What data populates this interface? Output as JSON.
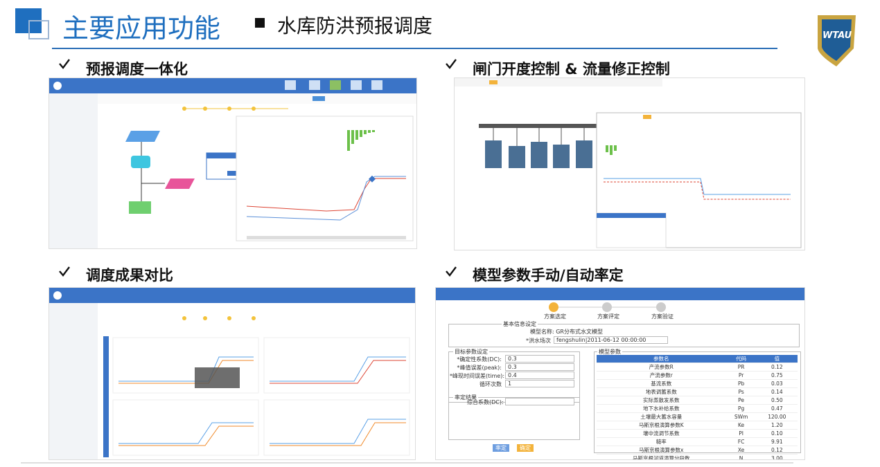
{
  "header": {
    "title": "主要应用功能",
    "subtitle": "水库防洪预报调度",
    "logo": "WTAU"
  },
  "panels": [
    {
      "heading": "预报调度一体化"
    },
    {
      "heading": "闸门开度控制 & 流量修正控制"
    },
    {
      "heading": "调度成果对比"
    },
    {
      "heading": "模型参数手动/自动率定"
    }
  ],
  "calibration": {
    "steps": [
      "方案选定",
      "方案评定",
      "方案验证"
    ],
    "basic": {
      "legend": "基本信息设定",
      "model": "模型名称: GR分布式水文模型",
      "flood_label": "*洪水场次",
      "flood_value": "fengshulin|2011-06-12 00:00:00"
    },
    "target": {
      "legend": "目标参数设定",
      "rows": [
        [
          "*确定性系数(DC):",
          "0.3"
        ],
        [
          "*峰值误差(peak):",
          "0.3"
        ],
        [
          "*峰现时间误差(time):",
          "0.4"
        ],
        [
          "循环次数",
          "1"
        ]
      ]
    },
    "result": {
      "legend": "率定结果",
      "label": "综合系数(DC):"
    },
    "params": {
      "legend": "模型参数",
      "header": [
        "参数名",
        "代码",
        "值"
      ],
      "rows": [
        [
          "产流参数R",
          "PR",
          "0.12"
        ],
        [
          "产流参数r",
          "Pr",
          "0.75"
        ],
        [
          "基流系数",
          "Pb",
          "0.03"
        ],
        [
          "地表调蓄系数",
          "Ps",
          "0.14"
        ],
        [
          "实际蒸散发系数",
          "Pe",
          "0.50"
        ],
        [
          "地下水补给系数",
          "Pg",
          "0.47"
        ],
        [
          "土壤最大蓄水容量",
          "SWm",
          "120.00"
        ],
        [
          "马斯京根演算参数K",
          "Ke",
          "1.20"
        ],
        [
          "壤中流调节系数",
          "PI",
          "0.10"
        ],
        [
          "糙率",
          "FC",
          "9.91"
        ],
        [
          "马斯京根演算参数x",
          "Xe",
          "0.12"
        ],
        [
          "马斯京根河道演算分段数",
          "N",
          "3.00"
        ]
      ]
    },
    "buttons": [
      "率定",
      "确定"
    ]
  }
}
